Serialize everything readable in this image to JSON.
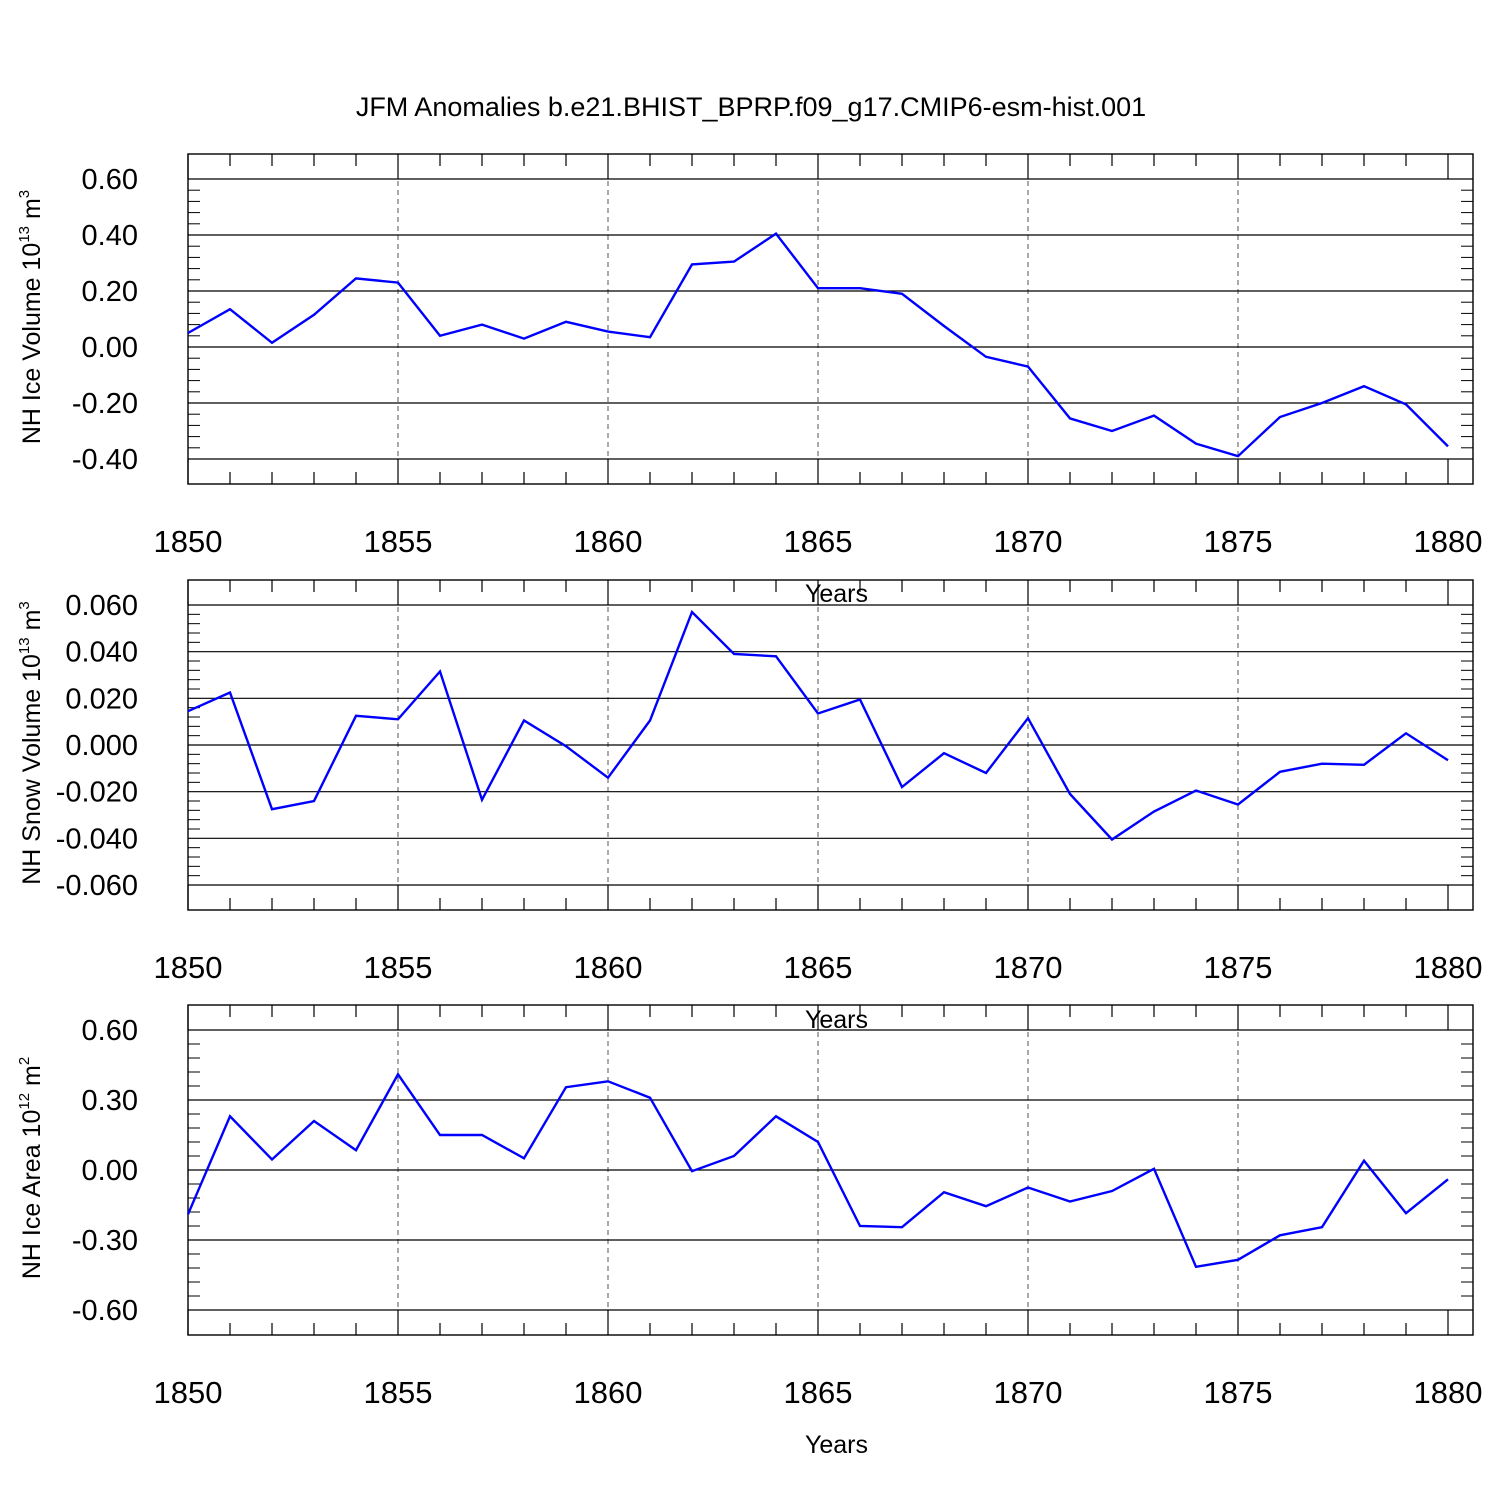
{
  "title": "JFM Anomalies b.e21.BHIST_BPRP.f09_g17.CMIP6-esm-hist.001",
  "style": {
    "line_color": "#0000ff",
    "axis_color": "#000000",
    "grid_color": "#555555"
  },
  "chart_data": [
    {
      "type": "line",
      "title": "JFM Anomalies b.e21.BHIST_BPRP.f09_g17.CMIP6-esm-hist.001",
      "xlabel": "Years",
      "ylabel": {
        "text": "NH Ice Volume 10",
        "exp": "13",
        "unit": " m",
        "unit_exp": "3"
      },
      "xlim": [
        1850,
        1880
      ],
      "ylim": [
        -0.4,
        0.6
      ],
      "y_ticks": [
        -0.4,
        -0.2,
        0.0,
        0.2,
        0.4,
        0.6
      ],
      "y_tick_labels": [
        "-0.40",
        "-0.20",
        "0.00",
        "0.20",
        "0.40",
        "0.60"
      ],
      "x_ticks": [
        1850,
        1855,
        1860,
        1865,
        1870,
        1875,
        1880
      ],
      "x_tick_labels": [
        "1850",
        "1855",
        "1860",
        "1865",
        "1870",
        "1875",
        "1880"
      ],
      "grid": "vertical dashed at major x ticks",
      "x": [
        1850,
        1851,
        1852,
        1853,
        1854,
        1855,
        1856,
        1857,
        1858,
        1859,
        1860,
        1861,
        1862,
        1863,
        1864,
        1865,
        1866,
        1867,
        1868,
        1869,
        1870,
        1871,
        1872,
        1873,
        1874,
        1875,
        1876,
        1877,
        1878,
        1879,
        1880
      ],
      "values": [
        0.05,
        0.135,
        0.015,
        0.115,
        0.245,
        0.23,
        0.04,
        0.08,
        0.03,
        0.09,
        0.055,
        0.035,
        0.295,
        0.305,
        0.405,
        0.21,
        0.21,
        0.19,
        0.075,
        -0.035,
        -0.07,
        -0.255,
        -0.3,
        -0.245,
        -0.345,
        -0.39,
        -0.25,
        -0.2,
        -0.14,
        -0.205,
        -0.355
      ]
    },
    {
      "type": "line",
      "xlabel": "Years",
      "ylabel": {
        "text": "NH Snow Volume 10",
        "exp": "13",
        "unit": " m",
        "unit_exp": "3"
      },
      "xlim": [
        1850,
        1880
      ],
      "ylim": [
        -0.06,
        0.06
      ],
      "y_ticks": [
        -0.06,
        -0.04,
        -0.02,
        0.0,
        0.02,
        0.04,
        0.06
      ],
      "y_tick_labels": [
        "-0.060",
        "-0.040",
        "-0.020",
        "0.000",
        "0.020",
        "0.040",
        "0.060"
      ],
      "x_ticks": [
        1850,
        1855,
        1860,
        1865,
        1870,
        1875,
        1880
      ],
      "x_tick_labels": [
        "1850",
        "1855",
        "1860",
        "1865",
        "1870",
        "1875",
        "1880"
      ],
      "grid": "vertical dashed at major x ticks",
      "x": [
        1850,
        1851,
        1852,
        1853,
        1854,
        1855,
        1856,
        1857,
        1858,
        1859,
        1860,
        1861,
        1862,
        1863,
        1864,
        1865,
        1866,
        1867,
        1868,
        1869,
        1870,
        1871,
        1872,
        1873,
        1874,
        1875,
        1876,
        1877,
        1878,
        1879,
        1880
      ],
      "values": [
        0.0145,
        0.0225,
        -0.0275,
        -0.024,
        0.0125,
        0.011,
        0.0315,
        -0.0235,
        0.0105,
        -0.0005,
        -0.014,
        0.0105,
        0.057,
        0.039,
        0.038,
        0.0135,
        0.0195,
        -0.018,
        -0.0035,
        -0.012,
        0.0115,
        -0.021,
        -0.0405,
        -0.0285,
        -0.0195,
        -0.0255,
        -0.0115,
        -0.008,
        -0.0085,
        0.005,
        -0.0065
      ]
    },
    {
      "type": "line",
      "xlabel": "Years",
      "ylabel": {
        "text": "NH Ice Area 10",
        "exp": "12",
        "unit": " m",
        "unit_exp": "2"
      },
      "xlim": [
        1850,
        1880
      ],
      "ylim": [
        -0.6,
        0.6
      ],
      "y_ticks": [
        -0.6,
        -0.3,
        0.0,
        0.3,
        0.6
      ],
      "y_tick_labels": [
        "-0.60",
        "-0.30",
        "0.00",
        "0.30",
        "0.60"
      ],
      "x_ticks": [
        1850,
        1855,
        1860,
        1865,
        1870,
        1875,
        1880
      ],
      "x_tick_labels": [
        "1850",
        "1855",
        "1860",
        "1865",
        "1870",
        "1875",
        "1880"
      ],
      "grid": "vertical dashed at major x ticks",
      "x": [
        1850,
        1851,
        1852,
        1853,
        1854,
        1855,
        1856,
        1857,
        1858,
        1859,
        1860,
        1861,
        1862,
        1863,
        1864,
        1865,
        1866,
        1867,
        1868,
        1869,
        1870,
        1871,
        1872,
        1873,
        1874,
        1875,
        1876,
        1877,
        1878,
        1879,
        1880
      ],
      "values": [
        -0.19,
        0.23,
        0.045,
        0.21,
        0.085,
        0.41,
        0.15,
        0.15,
        0.05,
        0.355,
        0.38,
        0.31,
        -0.005,
        0.06,
        0.23,
        0.12,
        -0.24,
        -0.245,
        -0.095,
        -0.155,
        -0.075,
        -0.135,
        -0.09,
        0.005,
        -0.415,
        -0.385,
        -0.28,
        -0.245,
        0.04,
        -0.185,
        -0.04
      ]
    }
  ]
}
